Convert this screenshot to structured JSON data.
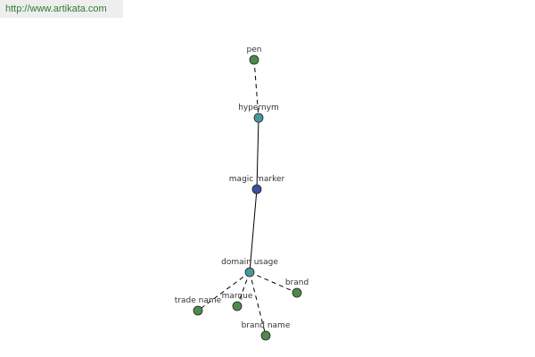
{
  "header": {
    "url": "http://www.artikata.com"
  },
  "nodes": [
    {
      "label": "pen"
    },
    {
      "label": "hypernym"
    },
    {
      "label": "magic marker"
    },
    {
      "label": "domain usage"
    },
    {
      "label": "brand"
    },
    {
      "label": "marque"
    },
    {
      "label": "trade name"
    },
    {
      "label": "brand name"
    }
  ]
}
